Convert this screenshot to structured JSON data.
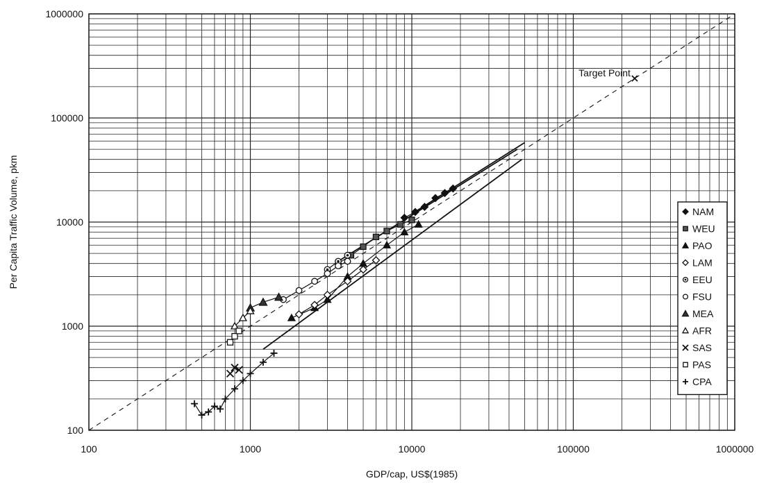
{
  "chart_data": {
    "type": "scatter",
    "title": "",
    "xlabel": "GDP/cap, US$(1985)",
    "ylabel": "Per Capita Traffic Volume, pkm",
    "x_scale": "log",
    "y_scale": "log",
    "xlim": [
      100,
      1000000
    ],
    "ylim": [
      100,
      1000000
    ],
    "x_ticks": [
      "100",
      "1000",
      "10000",
      "100000",
      "1000000"
    ],
    "y_ticks": [
      "100",
      "1000",
      "10000",
      "100000",
      "1000000"
    ],
    "grid": true,
    "legend_position": "right",
    "reference_line": {
      "style": "dashed",
      "points": [
        [
          100,
          100
        ],
        [
          1000000,
          1000000
        ]
      ]
    },
    "annotation": {
      "text": "Target Point",
      "point": [
        240000,
        240000
      ],
      "marker": "x"
    },
    "series": [
      {
        "name": "NAM",
        "marker": "diamond-filled",
        "points": [
          [
            9000,
            11000
          ],
          [
            10500,
            12500
          ],
          [
            12000,
            14000
          ],
          [
            14000,
            17000
          ],
          [
            16000,
            19000
          ],
          [
            18000,
            21000
          ]
        ],
        "trend": [
          [
            10000,
            12000
          ],
          [
            50000,
            58000
          ]
        ]
      },
      {
        "name": "WEU",
        "marker": "square-filled",
        "points": [
          [
            3500,
            4000
          ],
          [
            4200,
            4800
          ],
          [
            5000,
            5800
          ],
          [
            6000,
            7200
          ],
          [
            7000,
            8200
          ],
          [
            8500,
            9500
          ],
          [
            10000,
            10500
          ]
        ],
        "trend": [
          [
            3500,
            4200
          ],
          [
            45000,
            50000
          ]
        ]
      },
      {
        "name": "PAO",
        "marker": "triangle-filled",
        "points": [
          [
            1800,
            1200
          ],
          [
            2500,
            1500
          ],
          [
            3000,
            1800
          ],
          [
            4000,
            3000
          ],
          [
            5000,
            4000
          ],
          [
            7000,
            6000
          ],
          [
            9000,
            8000
          ],
          [
            11000,
            9500
          ]
        ],
        "trend": [
          [
            1200,
            600
          ],
          [
            48000,
            40000
          ]
        ]
      },
      {
        "name": "LAM",
        "marker": "diamond-open",
        "points": [
          [
            2000,
            1300
          ],
          [
            2500,
            1600
          ],
          [
            3000,
            2000
          ],
          [
            4000,
            2700
          ],
          [
            5000,
            3500
          ],
          [
            6000,
            4300
          ]
        ]
      },
      {
        "name": "EEU",
        "marker": "circle-dot",
        "points": [
          [
            3000,
            3500
          ],
          [
            3500,
            4200
          ],
          [
            4000,
            4800
          ]
        ]
      },
      {
        "name": "FSU",
        "marker": "circle-open",
        "points": [
          [
            1600,
            1800
          ],
          [
            2000,
            2200
          ],
          [
            2500,
            2700
          ],
          [
            3000,
            3200
          ],
          [
            3500,
            3800
          ],
          [
            4000,
            4200
          ]
        ]
      },
      {
        "name": "MEA",
        "marker": "triangle-filled-large",
        "points": [
          [
            1000,
            1500
          ],
          [
            1200,
            1700
          ],
          [
            1500,
            1900
          ]
        ]
      },
      {
        "name": "AFR",
        "marker": "triangle-open",
        "points": [
          [
            800,
            1000
          ],
          [
            900,
            1200
          ],
          [
            1000,
            1400
          ]
        ]
      },
      {
        "name": "SAS",
        "marker": "x",
        "points": [
          [
            750,
            350
          ],
          [
            800,
            400
          ],
          [
            850,
            380
          ]
        ]
      },
      {
        "name": "PAS",
        "marker": "square-open",
        "points": [
          [
            750,
            700
          ],
          [
            800,
            800
          ],
          [
            850,
            900
          ]
        ]
      },
      {
        "name": "CPA",
        "marker": "plus",
        "points": [
          [
            450,
            180
          ],
          [
            500,
            140
          ],
          [
            550,
            150
          ],
          [
            600,
            170
          ],
          [
            650,
            160
          ],
          [
            700,
            200
          ],
          [
            800,
            250
          ],
          [
            900,
            300
          ],
          [
            1000,
            350
          ],
          [
            1200,
            450
          ],
          [
            1400,
            550
          ]
        ]
      }
    ]
  }
}
